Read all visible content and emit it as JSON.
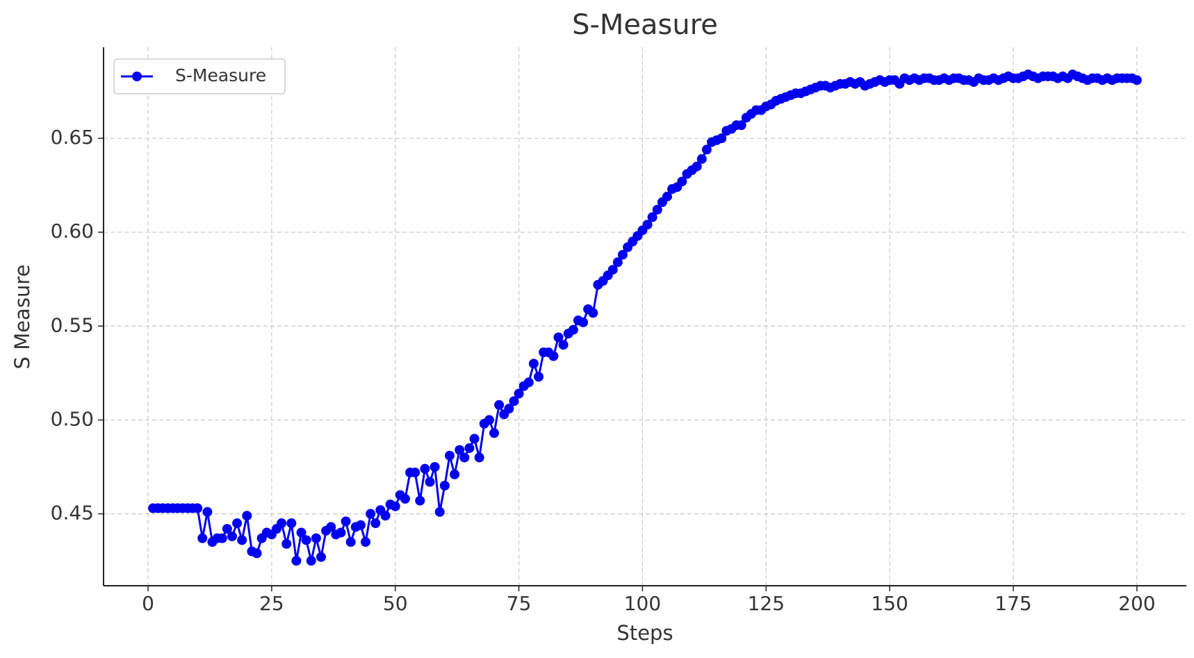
{
  "chart_data": {
    "type": "line",
    "title": "S-Measure",
    "x_label": "Steps",
    "y_label": "S Measure",
    "x": [
      1,
      2,
      3,
      4,
      5,
      6,
      7,
      8,
      9,
      10,
      11,
      12,
      13,
      14,
      15,
      16,
      17,
      18,
      19,
      20,
      21,
      22,
      23,
      24,
      25,
      26,
      27,
      28,
      29,
      30,
      31,
      32,
      33,
      34,
      35,
      36,
      37,
      38,
      39,
      40,
      41,
      42,
      43,
      44,
      45,
      46,
      47,
      48,
      49,
      50,
      51,
      52,
      53,
      54,
      55,
      56,
      57,
      58,
      59,
      60,
      61,
      62,
      63,
      64,
      65,
      66,
      67,
      68,
      69,
      70,
      71,
      72,
      73,
      74,
      75,
      76,
      77,
      78,
      79,
      80,
      81,
      82,
      83,
      84,
      85,
      86,
      87,
      88,
      89,
      90,
      91,
      92,
      93,
      94,
      95,
      96,
      97,
      98,
      99,
      100,
      101,
      102,
      103,
      104,
      105,
      106,
      107,
      108,
      109,
      110,
      111,
      112,
      113,
      114,
      115,
      116,
      117,
      118,
      119,
      120,
      121,
      122,
      123,
      124,
      125,
      126,
      127,
      128,
      129,
      130,
      131,
      132,
      133,
      134,
      135,
      136,
      137,
      138,
      139,
      140,
      141,
      142,
      143,
      144,
      145,
      146,
      147,
      148,
      149,
      150,
      151,
      152,
      153,
      154,
      155,
      156,
      157,
      158,
      159,
      160,
      161,
      162,
      163,
      164,
      165,
      166,
      167,
      168,
      169,
      170,
      171,
      172,
      173,
      174,
      175,
      176,
      177,
      178,
      179,
      180,
      181,
      182,
      183,
      184,
      185,
      186,
      187,
      188,
      189,
      190,
      191,
      192,
      193,
      194,
      195,
      196,
      197,
      198,
      199,
      200
    ],
    "series": [
      {
        "name": "S-Measure",
        "color": "#0000ee",
        "values": [
          0.453,
          0.453,
          0.453,
          0.453,
          0.453,
          0.453,
          0.453,
          0.453,
          0.453,
          0.453,
          0.437,
          0.451,
          0.435,
          0.437,
          0.437,
          0.442,
          0.438,
          0.445,
          0.436,
          0.449,
          0.43,
          0.429,
          0.437,
          0.44,
          0.439,
          0.442,
          0.445,
          0.434,
          0.445,
          0.425,
          0.44,
          0.436,
          0.425,
          0.437,
          0.427,
          0.441,
          0.443,
          0.439,
          0.44,
          0.446,
          0.435,
          0.443,
          0.444,
          0.435,
          0.45,
          0.445,
          0.452,
          0.449,
          0.455,
          0.454,
          0.46,
          0.458,
          0.472,
          0.472,
          0.457,
          0.474,
          0.467,
          0.475,
          0.451,
          0.465,
          0.481,
          0.471,
          0.484,
          0.48,
          0.485,
          0.49,
          0.48,
          0.498,
          0.5,
          0.493,
          0.508,
          0.503,
          0.506,
          0.51,
          0.514,
          0.518,
          0.52,
          0.53,
          0.523,
          0.536,
          0.536,
          0.534,
          0.544,
          0.54,
          0.546,
          0.548,
          0.553,
          0.552,
          0.559,
          0.557,
          0.572,
          0.574,
          0.577,
          0.58,
          0.584,
          0.588,
          0.592,
          0.595,
          0.598,
          0.601,
          0.604,
          0.608,
          0.612,
          0.616,
          0.619,
          0.623,
          0.624,
          0.627,
          0.631,
          0.633,
          0.635,
          0.639,
          0.644,
          0.648,
          0.649,
          0.65,
          0.654,
          0.655,
          0.657,
          0.657,
          0.661,
          0.663,
          0.665,
          0.665,
          0.667,
          0.668,
          0.67,
          0.671,
          0.672,
          0.673,
          0.674,
          0.674,
          0.675,
          0.676,
          0.677,
          0.678,
          0.678,
          0.677,
          0.678,
          0.679,
          0.679,
          0.68,
          0.679,
          0.68,
          0.678,
          0.679,
          0.68,
          0.681,
          0.68,
          0.681,
          0.681,
          0.679,
          0.682,
          0.681,
          0.682,
          0.681,
          0.682,
          0.682,
          0.681,
          0.681,
          0.682,
          0.681,
          0.682,
          0.682,
          0.681,
          0.681,
          0.68,
          0.682,
          0.681,
          0.681,
          0.682,
          0.681,
          0.682,
          0.683,
          0.682,
          0.682,
          0.683,
          0.684,
          0.683,
          0.682,
          0.683,
          0.683,
          0.683,
          0.682,
          0.683,
          0.682,
          0.684,
          0.683,
          0.682,
          0.681,
          0.682,
          0.682,
          0.681,
          0.682,
          0.681,
          0.682,
          0.682,
          0.682,
          0.682,
          0.681
        ]
      }
    ],
    "xlim": [
      -9,
      210
    ],
    "ylim": [
      0.4117,
      0.6985
    ],
    "xticks": [
      0,
      25,
      50,
      75,
      100,
      125,
      150,
      175,
      200
    ],
    "yticks": [
      0.45,
      {
        "value": 0.5,
        "label": "0.50"
      },
      0.55,
      {
        "value": 0.6,
        "label": "0.60"
      },
      0.65
    ],
    "grid": true,
    "legend": "upper left"
  }
}
